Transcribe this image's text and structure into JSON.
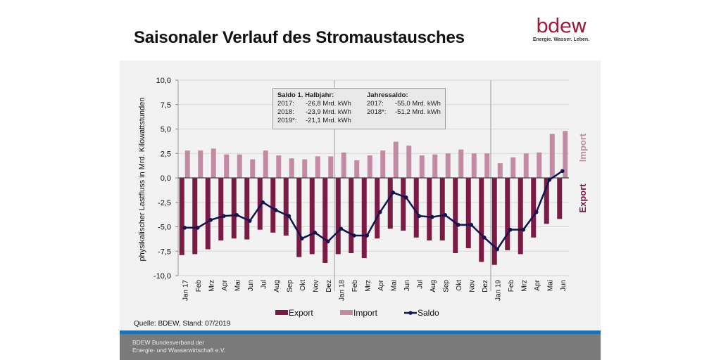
{
  "header": {
    "title": "Saisonaler Verlauf des Stromaustausches",
    "logo_word": "bdew",
    "logo_tagline": "Energie. Wasser. Leben."
  },
  "info_box": {
    "left_heading": "Saldo 1. Halbjahr:",
    "left_rows": [
      {
        "year": "2017:",
        "value": "-26,8 Mrd. kWh"
      },
      {
        "year": "2018:",
        "value": "-23,9 Mrd. kWh"
      },
      {
        "year": "2019*:",
        "value": "-21,1 Mrd. kWh"
      }
    ],
    "right_heading": "Jahressaldo:",
    "right_rows": [
      {
        "year": "2017:",
        "value": "-55,0 Mrd. kWh"
      },
      {
        "year": "2018*:",
        "value": "-51,2 Mrd. kWh"
      }
    ]
  },
  "source": "Quelle: BDEW, Stand: 07/2019",
  "footer": {
    "line1": "BDEW Bundesverband der",
    "line2": "Energie- und Wasserwirtschaft e.V."
  },
  "colors": {
    "export": "#7b1a45",
    "import": "#c38aa3",
    "saldo": "#13134f",
    "brand": "#9b1c3a",
    "footer_blue": "#1f6fb2"
  },
  "chart_data": {
    "type": "bar",
    "title": "Saisonaler Verlauf des Stromaustausches",
    "ylabel": "physikalischer Lastfluss in Mrd. Kilowattstunden",
    "xlabel": "",
    "ylim": [
      -10,
      10
    ],
    "yticks": [
      10,
      7.5,
      5,
      2.5,
      0,
      -2.5,
      -5,
      -7.5,
      -10
    ],
    "ytick_labels": [
      "10,0",
      "7,5",
      "5,0",
      "2,5",
      "0,0",
      "-2,5",
      "-5,0",
      "-7,5",
      "-10,0"
    ],
    "grid": true,
    "legend_position": "bottom",
    "side_labels": {
      "import": "Import",
      "export": "Export"
    },
    "categories": [
      "Jan 17",
      "Feb",
      "Mrz",
      "Apr",
      "Mai",
      "Jun",
      "Jul",
      "Aug",
      "Sep",
      "Okt",
      "Nov",
      "Dez",
      "Jan 18",
      "Feb",
      "Mrz",
      "Apr",
      "Mai",
      "Jun",
      "Jul",
      "Aug",
      "Sep",
      "Okt",
      "Nov",
      "Dez",
      "Jan 19",
      "Feb",
      "Mrz",
      "Apr",
      "Mai",
      "Jun"
    ],
    "year_separators_after_index": [
      11,
      23
    ],
    "series": [
      {
        "name": "Export",
        "type": "bar",
        "values": [
          -7.9,
          -7.8,
          -7.3,
          -6.4,
          -6.2,
          -6.3,
          -5.3,
          -5.6,
          -5.9,
          -8.1,
          -7.8,
          -8.7,
          -7.8,
          -7.7,
          -8.2,
          -6.2,
          -5.2,
          -5.4,
          -6.1,
          -6.4,
          -6.4,
          -7.7,
          -7.2,
          -8.6,
          -8.9,
          -7.4,
          -7.8,
          -6.1,
          -4.7,
          -4.2
        ]
      },
      {
        "name": "Import",
        "type": "bar",
        "values": [
          2.8,
          2.8,
          3.0,
          2.4,
          2.4,
          1.9,
          2.8,
          2.3,
          2.0,
          1.9,
          2.2,
          2.2,
          2.6,
          1.8,
          2.3,
          2.8,
          3.7,
          3.3,
          2.3,
          2.4,
          2.5,
          2.9,
          2.5,
          2.5,
          1.5,
          2.1,
          2.5,
          2.6,
          4.5,
          4.8
        ]
      },
      {
        "name": "Saldo",
        "type": "line",
        "values": [
          -5.1,
          -5.1,
          -4.3,
          -3.9,
          -3.8,
          -4.4,
          -2.5,
          -3.3,
          -3.9,
          -6.2,
          -5.6,
          -6.5,
          -5.2,
          -5.9,
          -5.9,
          -3.5,
          -1.5,
          -2.0,
          -3.9,
          -4.0,
          -3.8,
          -4.8,
          -4.8,
          -6.1,
          -7.3,
          -5.3,
          -5.3,
          -3.5,
          -0.2,
          0.7
        ]
      }
    ]
  }
}
